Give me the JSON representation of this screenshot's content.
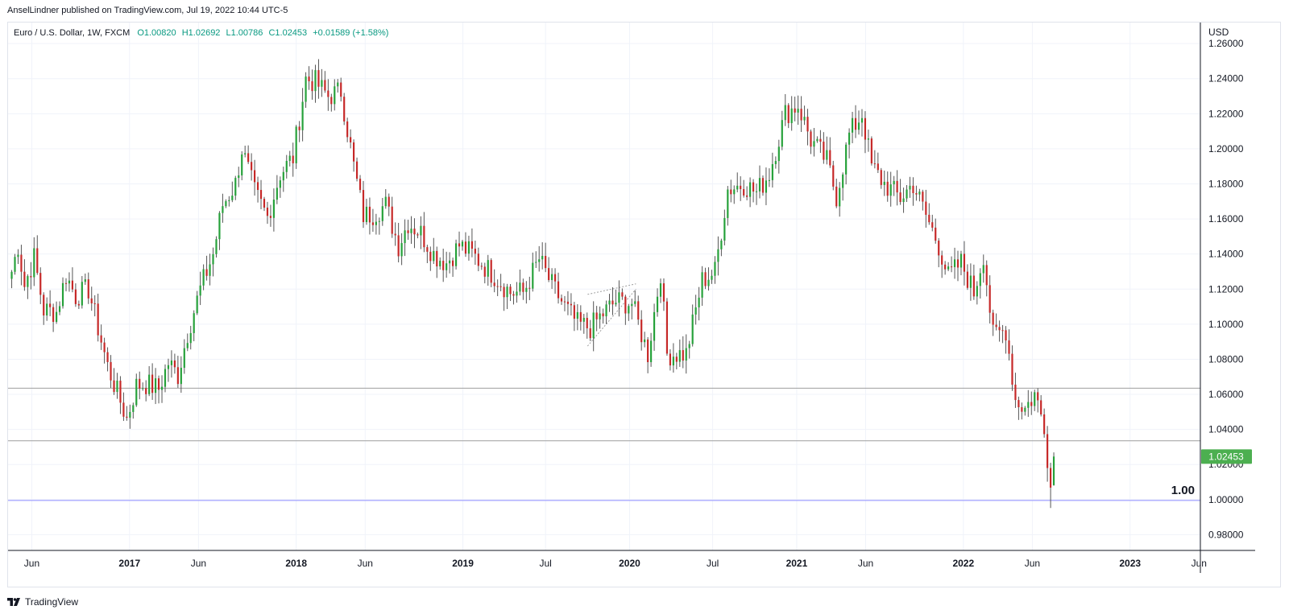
{
  "header": {
    "publisher": "AnselLindner published on TradingView.com, Jul 19, 2022 10:44 UTC-5"
  },
  "legend": {
    "symbol": "Euro / U.S. Dollar, 1W, FXCM",
    "open": "O1.00820",
    "high": "H1.02692",
    "low": "L1.00786",
    "close": "C1.02453",
    "change": "+0.01589 (+1.58%)"
  },
  "footer": {
    "brand": "TradingView"
  },
  "colors": {
    "up": "#089981",
    "down": "#f23645",
    "candle_up": "#26a13a",
    "candle_down": "#c62828",
    "grid": "#f0f3fa",
    "hline": "#9e9e9e",
    "parity_line": "#8c8cff",
    "price_badge": "#4caf50"
  },
  "chart_data": {
    "type": "candlestick",
    "currency": "USD",
    "x_axis_labels": [
      "Jun",
      "2017",
      "Jun",
      "2018",
      "Jun",
      "2019",
      "Jul",
      "2020",
      "Jul",
      "2021",
      "Jun",
      "2022",
      "Jun",
      "2023",
      "Jun"
    ],
    "x_axis_dates": [
      "2016-06-01",
      "2017-01-01",
      "2017-06-01",
      "2018-01-01",
      "2018-06-01",
      "2019-01-01",
      "2019-07-01",
      "2020-01-01",
      "2020-07-01",
      "2021-01-01",
      "2021-06-01",
      "2022-01-01",
      "2022-06-01",
      "2023-01-01",
      "2023-06-01"
    ],
    "y_axis_labels": [
      "1.26000",
      "1.24000",
      "1.22000",
      "1.20000",
      "1.18000",
      "1.16000",
      "1.14000",
      "1.12000",
      "1.10000",
      "1.08000",
      "1.06000",
      "1.04000",
      "1.02000",
      "1.00000",
      "0.98000"
    ],
    "y_range": [
      0.971,
      1.272
    ],
    "x_range": [
      "2016-04-10",
      "2023-06-04"
    ],
    "last_price": "1.02453",
    "horizontal_lines": [
      {
        "price": 1.0635,
        "kind": "support"
      },
      {
        "price": 1.0335,
        "kind": "support"
      },
      {
        "price": 0.9995,
        "kind": "parity",
        "label": "1.00"
      }
    ],
    "pattern_triangle": {
      "points": [
        [
          "2019-10-01",
          1.117
        ],
        [
          "2020-01-15",
          1.123
        ],
        [
          "2019-10-01",
          1.0875
        ],
        [
          "2020-01-15",
          1.12
        ]
      ]
    },
    "price_path": [
      [
        "2016-04-18",
        1.13
      ],
      [
        "2016-05-02",
        1.145
      ],
      [
        "2016-05-16",
        1.122
      ],
      [
        "2016-06-06",
        1.138
      ],
      [
        "2016-06-27",
        1.108
      ],
      [
        "2016-07-25",
        1.107
      ],
      [
        "2016-08-15",
        1.128
      ],
      [
        "2016-09-05",
        1.116
      ],
      [
        "2016-10-03",
        1.12
      ],
      [
        "2016-10-24",
        1.098
      ],
      [
        "2016-11-14",
        1.076
      ],
      [
        "2016-12-05",
        1.061
      ],
      [
        "2016-12-26",
        1.046
      ],
      [
        "2017-01-16",
        1.065
      ],
      [
        "2017-02-06",
        1.066
      ],
      [
        "2017-03-06",
        1.063
      ],
      [
        "2017-03-27",
        1.078
      ],
      [
        "2017-04-17",
        1.071
      ],
      [
        "2017-05-08",
        1.095
      ],
      [
        "2017-06-05",
        1.12
      ],
      [
        "2017-07-03",
        1.14
      ],
      [
        "2017-07-24",
        1.168
      ],
      [
        "2017-08-21",
        1.18
      ],
      [
        "2017-09-04",
        1.2
      ],
      [
        "2017-10-02",
        1.175
      ],
      [
        "2017-10-30",
        1.161
      ],
      [
        "2017-11-27",
        1.186
      ],
      [
        "2017-12-25",
        1.195
      ],
      [
        "2018-01-22",
        1.24
      ],
      [
        "2018-02-12",
        1.238
      ],
      [
        "2018-03-12",
        1.23
      ],
      [
        "2018-04-09",
        1.233
      ],
      [
        "2018-05-07",
        1.19
      ],
      [
        "2018-05-28",
        1.162
      ],
      [
        "2018-06-18",
        1.163
      ],
      [
        "2018-07-16",
        1.168
      ],
      [
        "2018-08-13",
        1.145
      ],
      [
        "2018-09-03",
        1.158
      ],
      [
        "2018-10-01",
        1.152
      ],
      [
        "2018-10-29",
        1.14
      ],
      [
        "2018-11-26",
        1.135
      ],
      [
        "2018-12-24",
        1.145
      ],
      [
        "2019-01-21",
        1.14
      ],
      [
        "2019-02-18",
        1.133
      ],
      [
        "2019-03-18",
        1.126
      ],
      [
        "2019-04-15",
        1.118
      ],
      [
        "2019-05-13",
        1.118
      ],
      [
        "2019-06-17",
        1.137
      ],
      [
        "2019-07-15",
        1.122
      ],
      [
        "2019-08-12",
        1.11
      ],
      [
        "2019-09-09",
        1.1
      ],
      [
        "2019-10-07",
        1.098
      ],
      [
        "2019-11-04",
        1.106
      ],
      [
        "2019-12-02",
        1.113
      ],
      [
        "2020-01-06",
        1.112
      ],
      [
        "2020-02-10",
        1.083
      ],
      [
        "2020-03-09",
        1.13
      ],
      [
        "2020-03-23",
        1.083
      ],
      [
        "2020-05-04",
        1.083
      ],
      [
        "2020-06-08",
        1.125
      ],
      [
        "2020-07-06",
        1.13
      ],
      [
        "2020-08-03",
        1.177
      ],
      [
        "2020-09-07",
        1.18
      ],
      [
        "2020-10-05",
        1.175
      ],
      [
        "2020-11-02",
        1.186
      ],
      [
        "2020-12-07",
        1.22
      ],
      [
        "2021-01-04",
        1.225
      ],
      [
        "2021-02-01",
        1.205
      ],
      [
        "2021-03-08",
        1.193
      ],
      [
        "2021-03-29",
        1.173
      ],
      [
        "2021-04-26",
        1.208
      ],
      [
        "2021-05-24",
        1.22
      ],
      [
        "2021-06-14",
        1.19
      ],
      [
        "2021-07-12",
        1.18
      ],
      [
        "2021-08-16",
        1.172
      ],
      [
        "2021-09-13",
        1.18
      ],
      [
        "2021-10-11",
        1.162
      ],
      [
        "2021-11-08",
        1.145
      ],
      [
        "2021-11-29",
        1.127
      ],
      [
        "2021-12-27",
        1.135
      ],
      [
        "2022-01-24",
        1.118
      ],
      [
        "2022-02-14",
        1.14
      ],
      [
        "2022-03-07",
        1.093
      ],
      [
        "2022-04-04",
        1.097
      ],
      [
        "2022-04-25",
        1.057
      ],
      [
        "2022-05-16",
        1.052
      ],
      [
        "2022-06-06",
        1.06
      ],
      [
        "2022-06-27",
        1.043
      ],
      [
        "2022-07-11",
        1.007
      ],
      [
        "2022-07-18",
        1.0245
      ]
    ]
  }
}
